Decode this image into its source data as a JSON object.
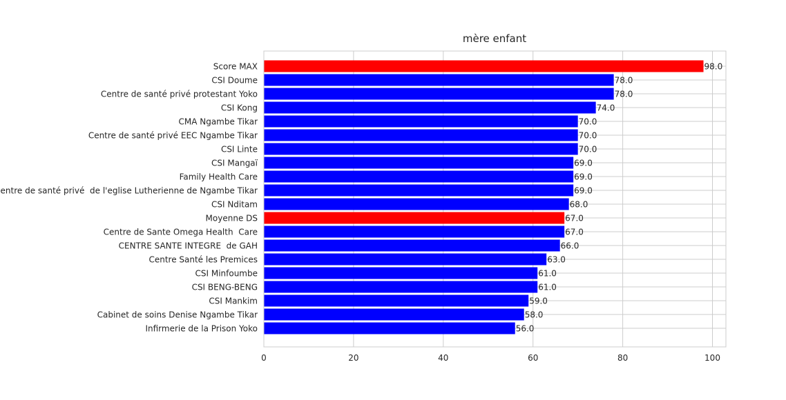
{
  "chart_data": {
    "type": "bar",
    "orientation": "horizontal",
    "title": "mère enfant",
    "xlabel": "",
    "ylabel": "",
    "xlim": [
      0,
      103
    ],
    "xticks": [
      0,
      20,
      40,
      60,
      80,
      100
    ],
    "grid": true,
    "legend": "none",
    "highlight_color": "#ff0000",
    "default_color": "#0000ff",
    "categories": [
      "Score MAX",
      "CSI Doume",
      "Centre de santé privé protestant Yoko",
      "CSI Kong",
      "CMA Ngambe Tikar",
      "Centre de santé privé EEC Ngambe Tikar",
      "CSI Linte",
      "CSI Mangaï",
      "Family Health Care",
      "Centre de santé privé  de l'eglise Lutherienne de Ngambe Tikar",
      "CSI Nditam",
      "Moyenne DS",
      "Centre de Sante Omega Health  Care",
      "CENTRE SANTE INTEGRE  de GAH",
      "Centre Santé les Premices",
      "CSI Minfoumbe",
      "CSI BENG-BENG",
      "CSI Mankim",
      "Cabinet de soins Denise Ngambe Tikar",
      "Infirmerie de la Prison Yoko"
    ],
    "values": [
      98.0,
      78.0,
      78.0,
      74.0,
      70.0,
      70.0,
      70.0,
      69.0,
      69.0,
      69.0,
      68.0,
      67.0,
      67.0,
      66.0,
      63.0,
      61.0,
      61.0,
      59.0,
      58.0,
      56.0
    ],
    "value_labels": [
      "98.0",
      "78.0",
      "78.0",
      "74.0",
      "70.0",
      "70.0",
      "70.0",
      "69.0",
      "69.0",
      "69.0",
      "68.0",
      "67.0",
      "67.0",
      "66.0",
      "63.0",
      "61.0",
      "61.0",
      "59.0",
      "58.0",
      "56.0"
    ],
    "highlighted": [
      "Score MAX",
      "Moyenne DS"
    ]
  }
}
